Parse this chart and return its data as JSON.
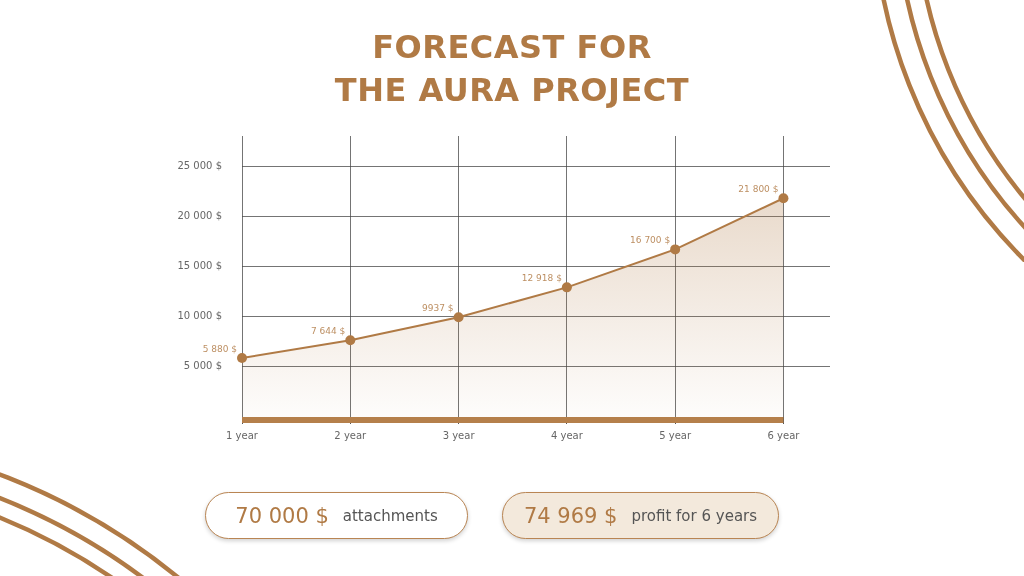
{
  "chart_data": {
    "type": "area",
    "title": "FORECAST FOR\nTHE AURA PROJECT",
    "categories": [
      "1 year",
      "2 year",
      "3 year",
      "4 year",
      "5 year",
      "6 year"
    ],
    "values": [
      5880,
      7644,
      9937,
      12918,
      16700,
      21800
    ],
    "value_labels": [
      "5 880 $",
      "7 644 $",
      "9937 $",
      "12 918 $",
      "16 700 $",
      "21 800 $"
    ],
    "color": "#b07a45",
    "ylim": [
      0,
      28000
    ],
    "yticks": [
      {
        "value": 5000,
        "label": "5 000 $"
      },
      {
        "value": 10000,
        "label": "10 000 $"
      },
      {
        "value": 15000,
        "label": "15 000 $"
      },
      {
        "value": 20000,
        "label": "20 000 $"
      },
      {
        "value": 25000,
        "label": "25 000 $"
      }
    ],
    "grid": true,
    "marker": "circle",
    "annotations": [
      "70 000 $",
      "attachments",
      "74 969 $",
      "profit for 6 years"
    ]
  }
}
